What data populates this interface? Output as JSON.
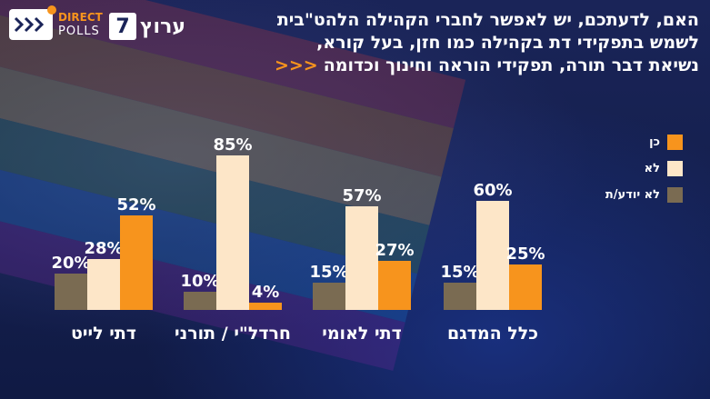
{
  "header": {
    "headline_lines": [
      "האם, לדעתכם, יש לאפשר לחברי הקהילה הלהט\"בית",
      "לשמש בתפקידי דת בקהילה כמו חזן, בעל קורא,",
      "נשיאת דבר תורה, תפקידי הוראה וחינוך וכדומה"
    ],
    "arrows": "<<<"
  },
  "logos": {
    "direct_polls_line1": "DIRECT",
    "direct_polls_line2": "POLLS",
    "channel_name": "ערוץ",
    "channel_number": "7"
  },
  "colors": {
    "yes": "#f7941d",
    "no": "#fde6c8",
    "dont_know": "#7a6b52",
    "accent": "#f7941d"
  },
  "chart_data": {
    "type": "bar",
    "title": "האם, לדעתכם, יש לאפשר לחברי הקהילה הלהט\"בית לשמש בתפקידי דת בקהילה כמו חזן, בעל קורא, נשיאת דבר תורה, תפקידי הוראה וחינוך וכדומה",
    "categories": [
      "כלל המדגם",
      "דתי לאומי",
      "חרדל\"י / תורני",
      "דתי לייט"
    ],
    "series": [
      {
        "name": "לא יודע/ת",
        "values": [
          15,
          15,
          10,
          20
        ]
      },
      {
        "name": "לא",
        "values": [
          60,
          57,
          85,
          28
        ]
      },
      {
        "name": "כן",
        "values": [
          25,
          27,
          4,
          52
        ]
      }
    ],
    "unit": "%",
    "ylim": [
      0,
      100
    ],
    "grid": false,
    "legend_position": "right"
  }
}
